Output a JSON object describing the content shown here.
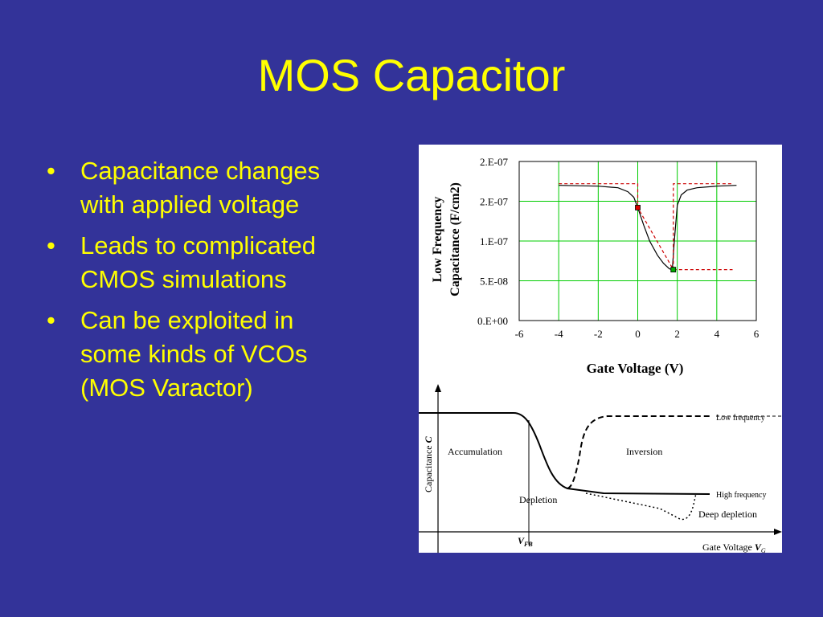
{
  "slide": {
    "title": "MOS Capacitor",
    "bullets": [
      {
        "line1": "Capacitance changes",
        "line2": "with applied voltage"
      },
      {
        "line1": "Leads to complicated",
        "line2": "CMOS simulations"
      },
      {
        "line1": "Can be exploited in",
        "line2": "some kinds of VCOs",
        "line3": "(MOS Varactor)"
      }
    ],
    "bullet_glyph": "•",
    "text_color": "#ffff00",
    "background_color": "#333399"
  },
  "chart_data": [
    {
      "type": "line",
      "xlabel": "Gate Voltage (V)",
      "ylabel_line1": "Low Frequency",
      "ylabel_line2": "Capacitance (F/cm2)",
      "x_ticks": [
        "-6",
        "-4",
        "-2",
        "0",
        "2",
        "4",
        "6"
      ],
      "y_ticks": [
        "0.E+00",
        "5.E-08",
        "1.E-07",
        "2.E-07",
        "2.E-07"
      ],
      "xlim": [
        -6,
        6
      ],
      "ylim": [
        0,
        2e-07
      ],
      "grid": true,
      "grid_color": "#00cc00",
      "series": [
        {
          "color": "#000000",
          "x": [
            -4.0,
            -2.0,
            -1.0,
            -0.5,
            -0.2,
            0.0,
            0.3,
            0.6,
            1.0,
            1.3,
            1.6,
            1.75,
            1.85,
            2.0,
            2.2,
            2.5,
            3.0,
            4.0,
            5.0
          ],
          "y": [
            1.7e-07,
            1.69e-07,
            1.67e-07,
            1.62e-07,
            1.55e-07,
            1.42e-07,
            1.2e-07,
            1e-07,
            8.2e-08,
            7.2e-08,
            6.5e-08,
            6.4e-08,
            1e-07,
            1.45e-07,
            1.58e-07,
            1.64e-07,
            1.67e-07,
            1.69e-07,
            1.7e-07
          ]
        },
        {
          "color": "#cc0000",
          "style": "dashed",
          "x": [
            -4.0,
            0.0,
            0.0,
            1.8,
            1.8,
            4.8
          ],
          "y": [
            1.72e-07,
            1.72e-07,
            1.42e-07,
            6.4e-08,
            1.72e-07,
            1.72e-07
          ]
        },
        {
          "color": "#cc0000",
          "style": "dashed",
          "x": [
            1.8,
            4.8
          ],
          "y": [
            6.4e-08,
            6.4e-08
          ]
        }
      ],
      "markers": [
        {
          "x": 0.0,
          "y": 1.42e-07,
          "color": "#dd0000"
        },
        {
          "x": 1.8,
          "y": 6.4e-08,
          "color": "#00aa00"
        }
      ]
    },
    {
      "type": "line",
      "xlabel": "Gate Voltage",
      "xlabel_symbol": "V",
      "xlabel_subscript": "G",
      "ylabel": "Capacitance",
      "ylabel_symbol": "C",
      "vfb_label": "V",
      "vfb_subscript": "FB",
      "regions": [
        "Accumulation",
        "Depletion",
        "Inversion",
        "Deep depletion"
      ],
      "curve_labels": [
        "Low frequency",
        "High frequency"
      ]
    }
  ]
}
